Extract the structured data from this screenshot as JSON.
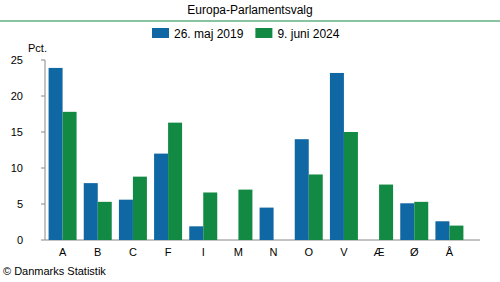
{
  "chart_data": {
    "type": "bar",
    "title": "Europa-Parlamentsvalg",
    "ylabel": "Pct.",
    "categories": [
      "A",
      "B",
      "C",
      "F",
      "I",
      "M",
      "N",
      "O",
      "V",
      "Æ",
      "Ø",
      "Å"
    ],
    "series": [
      {
        "name": "26. maj 2019",
        "color": "#0f68a3",
        "values": [
          23.9,
          7.9,
          5.6,
          12.0,
          1.9,
          null,
          4.5,
          14.0,
          23.2,
          null,
          5.1,
          2.6
        ]
      },
      {
        "name": "9. juni 2024",
        "color": "#138a43",
        "values": [
          17.8,
          5.3,
          8.8,
          16.3,
          6.6,
          7.0,
          null,
          9.1,
          15.0,
          7.7,
          5.3,
          2.0
        ]
      }
    ],
    "ylim": [
      0,
      25
    ],
    "yticks": [
      0,
      5,
      10,
      15,
      20,
      25
    ],
    "grid": false,
    "legend": "top",
    "annotations": [
      "© Danmarks Statistik"
    ]
  }
}
